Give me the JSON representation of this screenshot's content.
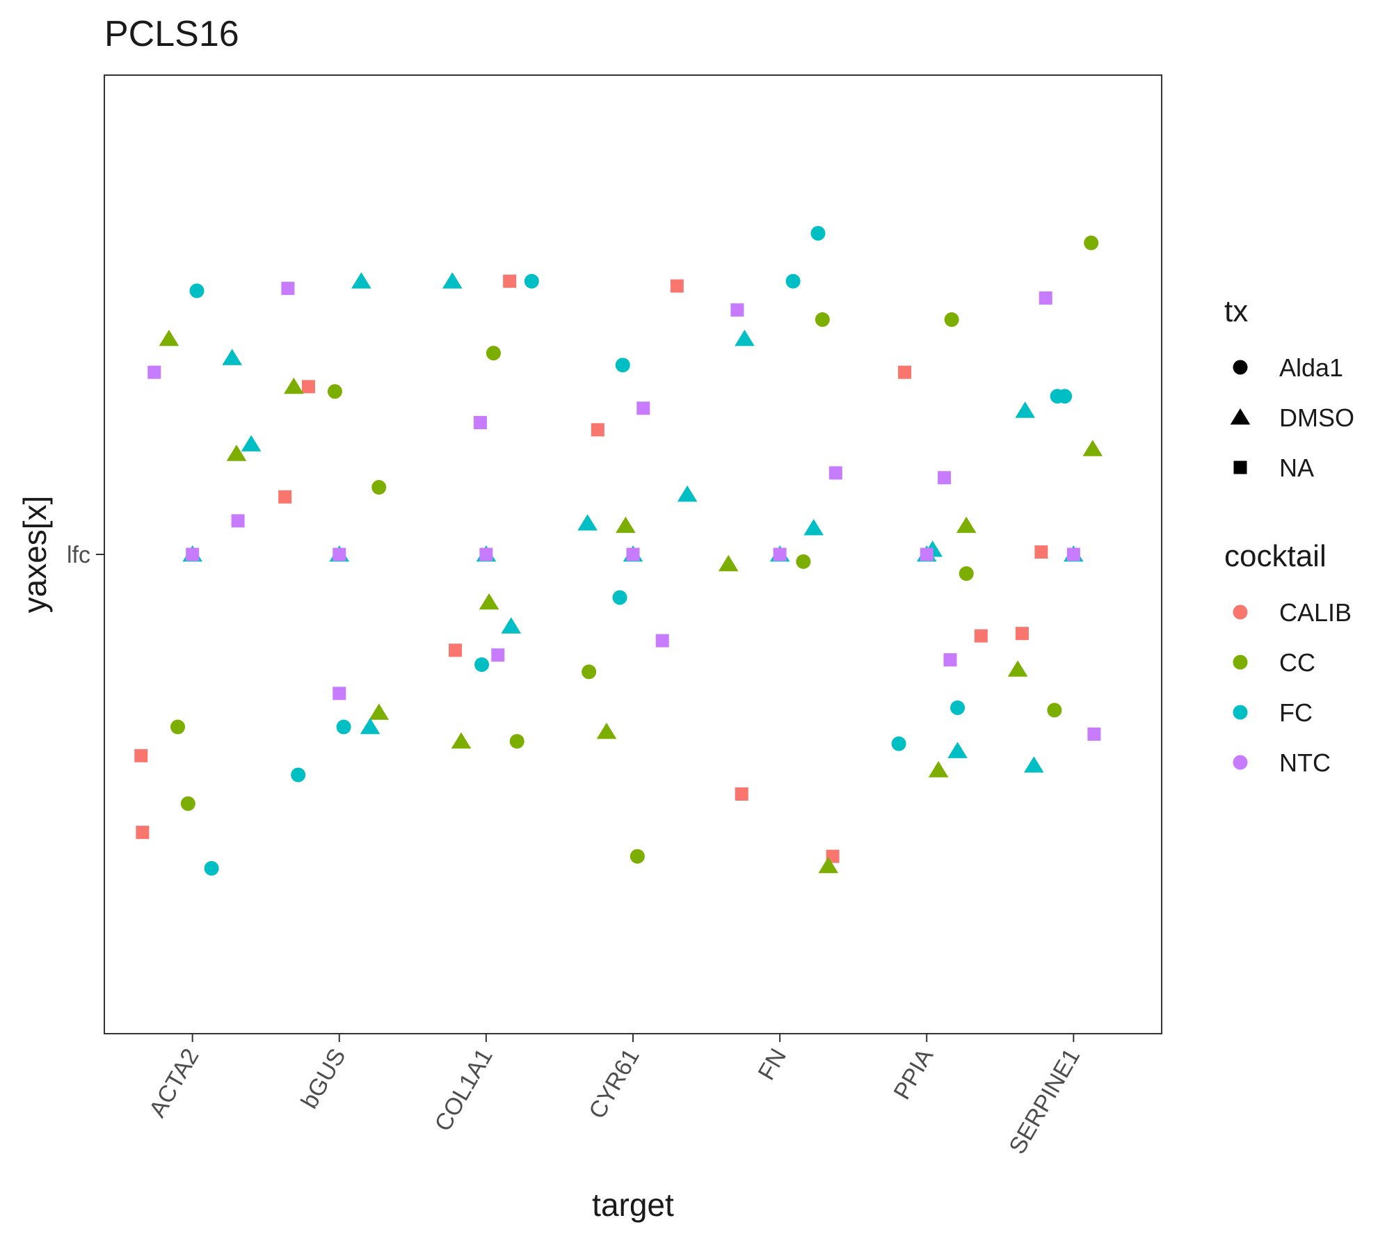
{
  "chart_data": {
    "type": "scatter",
    "title": "PCLS16",
    "xlabel": "target",
    "ylabel": "yaxes[x]",
    "y_tick_labels": [
      "lfc"
    ],
    "categories": [
      "ACTA2",
      "bGUS",
      "COL1A1",
      "CYR61",
      "FN",
      "PPIA",
      "SERPINE1"
    ],
    "ylim": [
      -1.0,
      1.0
    ],
    "grid": false,
    "legend_position": "right",
    "colors": {
      "CALIB": "#F8766D",
      "CC": "#7CAE00",
      "FC": "#00BFC4",
      "NTC": "#C77CFF",
      "text": "#1a1a1a",
      "axis_text": "#4d4d4d",
      "panel_border": "#333333"
    },
    "legends": [
      {
        "title": "tx",
        "kind": "shape",
        "items": [
          {
            "label": "Alda1",
            "shape": "circle"
          },
          {
            "label": "DMSO",
            "shape": "triangle"
          },
          {
            "label": "NA",
            "shape": "square"
          }
        ]
      },
      {
        "title": "cocktail",
        "kind": "color",
        "items": [
          {
            "label": "CALIB",
            "color_key": "CALIB"
          },
          {
            "label": "CC",
            "color_key": "CC"
          },
          {
            "label": "FC",
            "color_key": "FC"
          },
          {
            "label": "NTC",
            "color_key": "NTC"
          }
        ]
      }
    ],
    "series": [
      {
        "cocktail": "CALIB",
        "points": [
          {
            "target": "ACTA2",
            "jitter": -0.35,
            "y": -0.42,
            "tx": "NA"
          },
          {
            "target": "ACTA2",
            "jitter": -0.34,
            "y": -0.58,
            "tx": "NA"
          },
          {
            "target": "bGUS",
            "jitter": -0.21,
            "y": 0.35,
            "tx": "NA"
          },
          {
            "target": "bGUS",
            "jitter": -0.37,
            "y": 0.12,
            "tx": "NA"
          },
          {
            "target": "COL1A1",
            "jitter": -0.21,
            "y": -0.2,
            "tx": "NA"
          },
          {
            "target": "COL1A1",
            "jitter": 0.16,
            "y": 0.57,
            "tx": "NA"
          },
          {
            "target": "CYR61",
            "jitter": -0.24,
            "y": 0.26,
            "tx": "NA"
          },
          {
            "target": "CYR61",
            "jitter": 0.3,
            "y": 0.56,
            "tx": "NA"
          },
          {
            "target": "FN",
            "jitter": -0.26,
            "y": -0.5,
            "tx": "NA"
          },
          {
            "target": "FN",
            "jitter": 0.36,
            "y": -0.63,
            "tx": "NA"
          },
          {
            "target": "PPIA",
            "jitter": -0.15,
            "y": 0.38,
            "tx": "NA"
          },
          {
            "target": "PPIA",
            "jitter": 0.37,
            "y": -0.17,
            "tx": "NA"
          },
          {
            "target": "SERPINE1",
            "jitter": -0.35,
            "y": -0.165,
            "tx": "NA"
          },
          {
            "target": "SERPINE1",
            "jitter": -0.22,
            "y": 0.005,
            "tx": "NA"
          }
        ]
      },
      {
        "cocktail": "CC",
        "points": [
          {
            "target": "ACTA2",
            "jitter": -0.16,
            "y": 0.45,
            "tx": "DMSO"
          },
          {
            "target": "ACTA2",
            "jitter": 0.3,
            "y": 0.21,
            "tx": "DMSO"
          },
          {
            "target": "ACTA2",
            "jitter": -0.1,
            "y": -0.36,
            "tx": "Alda1"
          },
          {
            "target": "ACTA2",
            "jitter": -0.03,
            "y": -0.52,
            "tx": "Alda1"
          },
          {
            "target": "bGUS",
            "jitter": -0.31,
            "y": 0.35,
            "tx": "DMSO"
          },
          {
            "target": "bGUS",
            "jitter": -0.03,
            "y": 0.34,
            "tx": "Alda1"
          },
          {
            "target": "bGUS",
            "jitter": 0.27,
            "y": 0.14,
            "tx": "Alda1"
          },
          {
            "target": "bGUS",
            "jitter": 0.27,
            "y": -0.33,
            "tx": "DMSO"
          },
          {
            "target": "COL1A1",
            "jitter": 0.05,
            "y": 0.42,
            "tx": "Alda1"
          },
          {
            "target": "COL1A1",
            "jitter": 0.02,
            "y": -0.1,
            "tx": "DMSO"
          },
          {
            "target": "COL1A1",
            "jitter": -0.17,
            "y": -0.39,
            "tx": "DMSO"
          },
          {
            "target": "COL1A1",
            "jitter": 0.21,
            "y": -0.39,
            "tx": "Alda1"
          },
          {
            "target": "CYR61",
            "jitter": -0.05,
            "y": 0.06,
            "tx": "DMSO"
          },
          {
            "target": "CYR61",
            "jitter": -0.3,
            "y": -0.245,
            "tx": "Alda1"
          },
          {
            "target": "CYR61",
            "jitter": -0.18,
            "y": -0.37,
            "tx": "DMSO"
          },
          {
            "target": "CYR61",
            "jitter": 0.03,
            "y": -0.63,
            "tx": "Alda1"
          },
          {
            "target": "FN",
            "jitter": 0.29,
            "y": 0.49,
            "tx": "Alda1"
          },
          {
            "target": "FN",
            "jitter": -0.35,
            "y": -0.02,
            "tx": "DMSO"
          },
          {
            "target": "FN",
            "jitter": 0.16,
            "y": -0.015,
            "tx": "Alda1"
          },
          {
            "target": "FN",
            "jitter": 0.33,
            "y": -0.65,
            "tx": "DMSO"
          },
          {
            "target": "PPIA",
            "jitter": 0.17,
            "y": 0.49,
            "tx": "Alda1"
          },
          {
            "target": "PPIA",
            "jitter": 0.27,
            "y": 0.06,
            "tx": "DMSO"
          },
          {
            "target": "PPIA",
            "jitter": 0.27,
            "y": -0.04,
            "tx": "Alda1"
          },
          {
            "target": "PPIA",
            "jitter": 0.08,
            "y": -0.45,
            "tx": "DMSO"
          },
          {
            "target": "SERPINE1",
            "jitter": 0.12,
            "y": 0.65,
            "tx": "Alda1"
          },
          {
            "target": "SERPINE1",
            "jitter": 0.13,
            "y": 0.22,
            "tx": "DMSO"
          },
          {
            "target": "SERPINE1",
            "jitter": -0.38,
            "y": -0.24,
            "tx": "DMSO"
          },
          {
            "target": "SERPINE1",
            "jitter": -0.13,
            "y": -0.325,
            "tx": "Alda1"
          }
        ]
      },
      {
        "cocktail": "FC",
        "points": [
          {
            "target": "ACTA2",
            "jitter": 0.03,
            "y": 0.55,
            "tx": "Alda1"
          },
          {
            "target": "ACTA2",
            "jitter": 0.27,
            "y": 0.41,
            "tx": "DMSO"
          },
          {
            "target": "ACTA2",
            "jitter": 0.4,
            "y": 0.23,
            "tx": "DMSO"
          },
          {
            "target": "ACTA2",
            "jitter": 0.13,
            "y": -0.655,
            "tx": "Alda1"
          },
          {
            "target": "ACTA2",
            "jitter": 0.0,
            "y": 0.0,
            "tx": "DMSO"
          },
          {
            "target": "bGUS",
            "jitter": 0.15,
            "y": 0.57,
            "tx": "DMSO"
          },
          {
            "target": "bGUS",
            "jitter": 0.03,
            "y": -0.36,
            "tx": "Alda1"
          },
          {
            "target": "bGUS",
            "jitter": 0.21,
            "y": -0.36,
            "tx": "DMSO"
          },
          {
            "target": "bGUS",
            "jitter": -0.28,
            "y": -0.46,
            "tx": "Alda1"
          },
          {
            "target": "bGUS",
            "jitter": 0.0,
            "y": 0.0,
            "tx": "DMSO"
          },
          {
            "target": "COL1A1",
            "jitter": -0.23,
            "y": 0.57,
            "tx": "DMSO"
          },
          {
            "target": "COL1A1",
            "jitter": 0.31,
            "y": 0.57,
            "tx": "Alda1"
          },
          {
            "target": "COL1A1",
            "jitter": 0.17,
            "y": -0.15,
            "tx": "DMSO"
          },
          {
            "target": "COL1A1",
            "jitter": -0.03,
            "y": -0.23,
            "tx": "Alda1"
          },
          {
            "target": "COL1A1",
            "jitter": 0.0,
            "y": 0.0,
            "tx": "DMSO"
          },
          {
            "target": "CYR61",
            "jitter": -0.07,
            "y": 0.395,
            "tx": "Alda1"
          },
          {
            "target": "CYR61",
            "jitter": 0.37,
            "y": 0.125,
            "tx": "DMSO"
          },
          {
            "target": "CYR61",
            "jitter": -0.31,
            "y": 0.065,
            "tx": "DMSO"
          },
          {
            "target": "CYR61",
            "jitter": -0.09,
            "y": -0.09,
            "tx": "Alda1"
          },
          {
            "target": "CYR61",
            "jitter": 0.0,
            "y": 0.0,
            "tx": "DMSO"
          },
          {
            "target": "FN",
            "jitter": 0.26,
            "y": 0.67,
            "tx": "Alda1"
          },
          {
            "target": "FN",
            "jitter": 0.09,
            "y": 0.57,
            "tx": "Alda1"
          },
          {
            "target": "FN",
            "jitter": -0.24,
            "y": 0.45,
            "tx": "DMSO"
          },
          {
            "target": "FN",
            "jitter": 0.23,
            "y": 0.055,
            "tx": "DMSO"
          },
          {
            "target": "FN",
            "jitter": 0.0,
            "y": 0.0,
            "tx": "DMSO"
          },
          {
            "target": "PPIA",
            "jitter": 0.04,
            "y": 0.01,
            "tx": "DMSO"
          },
          {
            "target": "PPIA",
            "jitter": -0.19,
            "y": -0.395,
            "tx": "Alda1"
          },
          {
            "target": "PPIA",
            "jitter": 0.21,
            "y": -0.32,
            "tx": "Alda1"
          },
          {
            "target": "PPIA",
            "jitter": 0.21,
            "y": -0.41,
            "tx": "DMSO"
          },
          {
            "target": "PPIA",
            "jitter": 0.0,
            "y": 0.0,
            "tx": "DMSO"
          },
          {
            "target": "SERPINE1",
            "jitter": -0.33,
            "y": 0.3,
            "tx": "DMSO"
          },
          {
            "target": "SERPINE1",
            "jitter": -0.11,
            "y": 0.33,
            "tx": "Alda1"
          },
          {
            "target": "SERPINE1",
            "jitter": -0.06,
            "y": 0.33,
            "tx": "Alda1"
          },
          {
            "target": "SERPINE1",
            "jitter": -0.27,
            "y": -0.44,
            "tx": "DMSO"
          },
          {
            "target": "SERPINE1",
            "jitter": 0.0,
            "y": 0.0,
            "tx": "DMSO"
          }
        ]
      },
      {
        "cocktail": "NTC",
        "points": [
          {
            "target": "ACTA2",
            "jitter": -0.26,
            "y": 0.38,
            "tx": "NA"
          },
          {
            "target": "ACTA2",
            "jitter": 0.31,
            "y": 0.07,
            "tx": "NA"
          },
          {
            "target": "ACTA2",
            "jitter": 0.0,
            "y": 0.0,
            "tx": "NA"
          },
          {
            "target": "bGUS",
            "jitter": -0.35,
            "y": 0.555,
            "tx": "NA"
          },
          {
            "target": "bGUS",
            "jitter": 0.0,
            "y": -0.29,
            "tx": "NA"
          },
          {
            "target": "bGUS",
            "jitter": 0.0,
            "y": 0.0,
            "tx": "NA"
          },
          {
            "target": "COL1A1",
            "jitter": -0.04,
            "y": 0.275,
            "tx": "NA"
          },
          {
            "target": "COL1A1",
            "jitter": 0.08,
            "y": -0.21,
            "tx": "NA"
          },
          {
            "target": "COL1A1",
            "jitter": 0.0,
            "y": 0.0,
            "tx": "NA"
          },
          {
            "target": "CYR61",
            "jitter": 0.07,
            "y": 0.305,
            "tx": "NA"
          },
          {
            "target": "CYR61",
            "jitter": 0.2,
            "y": -0.18,
            "tx": "NA"
          },
          {
            "target": "CYR61",
            "jitter": 0.0,
            "y": 0.0,
            "tx": "NA"
          },
          {
            "target": "FN",
            "jitter": -0.29,
            "y": 0.51,
            "tx": "NA"
          },
          {
            "target": "FN",
            "jitter": 0.38,
            "y": 0.17,
            "tx": "NA"
          },
          {
            "target": "FN",
            "jitter": 0.0,
            "y": 0.0,
            "tx": "NA"
          },
          {
            "target": "PPIA",
            "jitter": 0.12,
            "y": 0.16,
            "tx": "NA"
          },
          {
            "target": "PPIA",
            "jitter": 0.16,
            "y": -0.22,
            "tx": "NA"
          },
          {
            "target": "PPIA",
            "jitter": 0.0,
            "y": 0.0,
            "tx": "NA"
          },
          {
            "target": "SERPINE1",
            "jitter": -0.19,
            "y": 0.535,
            "tx": "NA"
          },
          {
            "target": "SERPINE1",
            "jitter": 0.14,
            "y": -0.375,
            "tx": "NA"
          },
          {
            "target": "SERPINE1",
            "jitter": 0.0,
            "y": 0.0,
            "tx": "NA"
          }
        ]
      }
    ]
  }
}
